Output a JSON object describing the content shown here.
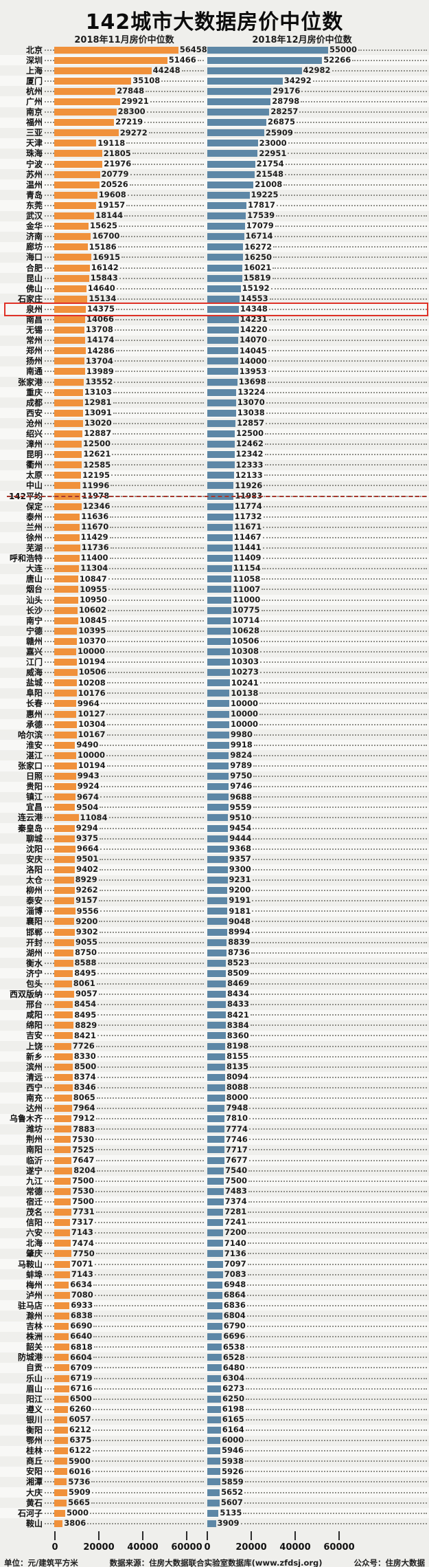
{
  "title": "142城市大数据房价中位数",
  "columns": {
    "left": "2018年11月房价中位数",
    "right": "2018年12月房价中位数"
  },
  "colors": {
    "nov_bar": "#f0913b",
    "dec_bar": "#5d87a6",
    "average_line": "#a6372c",
    "highlight_box": "#df3126"
  },
  "axis": {
    "tick_labels": [
      "0",
      "20000",
      "40000",
      "60000"
    ]
  },
  "footer": {
    "unit": "单位：元/建筑平方米",
    "source": "数据来源：住房大数据联合实验室数据库(www.zfdsj.org)",
    "account": "公众号：住房大数据"
  },
  "chart_data": {
    "type": "bar",
    "orientation": "horizontal",
    "title": "142城市大数据房价中位数",
    "series_names": [
      "2018年11月房价中位数",
      "2018年12月房价中位数"
    ],
    "xlim": [
      0,
      60000
    ],
    "x_ticks": [
      0,
      20000,
      40000,
      60000
    ],
    "unit": "元/建筑平方米",
    "highlighted_city": "泉州",
    "average_label": "142平均",
    "rows": [
      {
        "c": "北京",
        "n": 56458,
        "d": 55000
      },
      {
        "c": "深圳",
        "n": 51466,
        "d": 52266
      },
      {
        "c": "上海",
        "n": 44248,
        "d": 42982
      },
      {
        "c": "厦门",
        "n": 35108,
        "d": 34292
      },
      {
        "c": "杭州",
        "n": 27848,
        "d": 29176
      },
      {
        "c": "广州",
        "n": 29921,
        "d": 28798
      },
      {
        "c": "南京",
        "n": 28300,
        "d": 28257
      },
      {
        "c": "福州",
        "n": 27219,
        "d": 26875
      },
      {
        "c": "三亚",
        "n": 29272,
        "d": 25909
      },
      {
        "c": "天津",
        "n": 19118,
        "d": 23000
      },
      {
        "c": "珠海",
        "n": 21805,
        "d": 22951
      },
      {
        "c": "宁波",
        "n": 21976,
        "d": 21754
      },
      {
        "c": "苏州",
        "n": 20779,
        "d": 21548
      },
      {
        "c": "温州",
        "n": 20526,
        "d": 21008
      },
      {
        "c": "青岛",
        "n": 19608,
        "d": 19225
      },
      {
        "c": "东莞",
        "n": 19157,
        "d": 17817
      },
      {
        "c": "武汉",
        "n": 18144,
        "d": 17539
      },
      {
        "c": "金华",
        "n": 15625,
        "d": 17079
      },
      {
        "c": "济南",
        "n": 16700,
        "d": 16714
      },
      {
        "c": "廊坊",
        "n": 15186,
        "d": 16272
      },
      {
        "c": "海口",
        "n": 16915,
        "d": 16250
      },
      {
        "c": "合肥",
        "n": 16142,
        "d": 16021
      },
      {
        "c": "昆山",
        "n": 15843,
        "d": 15819
      },
      {
        "c": "佛山",
        "n": 14640,
        "d": 15192
      },
      {
        "c": "石家庄",
        "n": 15134,
        "d": 14553
      },
      {
        "c": "泉州",
        "n": 14375,
        "d": 14348,
        "hl": true
      },
      {
        "c": "南昌",
        "n": 14066,
        "d": 14231
      },
      {
        "c": "无锡",
        "n": 13708,
        "d": 14220
      },
      {
        "c": "常州",
        "n": 14174,
        "d": 14070
      },
      {
        "c": "郑州",
        "n": 14286,
        "d": 14045
      },
      {
        "c": "扬州",
        "n": 13704,
        "d": 14000
      },
      {
        "c": "南通",
        "n": 13989,
        "d": 13953
      },
      {
        "c": "张家港",
        "n": 13552,
        "d": 13698
      },
      {
        "c": "重庆",
        "n": 13103,
        "d": 13224
      },
      {
        "c": "成都",
        "n": 12981,
        "d": 13070
      },
      {
        "c": "西安",
        "n": 13091,
        "d": 13038
      },
      {
        "c": "沧州",
        "n": 13020,
        "d": 12857
      },
      {
        "c": "绍兴",
        "n": 12887,
        "d": 12500
      },
      {
        "c": "漳州",
        "n": 12500,
        "d": 12462
      },
      {
        "c": "昆明",
        "n": 12621,
        "d": 12342
      },
      {
        "c": "衢州",
        "n": 12585,
        "d": 12333
      },
      {
        "c": "太原",
        "n": 12195,
        "d": 12133
      },
      {
        "c": "中山",
        "n": 11996,
        "d": 11926
      },
      {
        "c": "142平均",
        "n": 11978,
        "d": 11983,
        "avg": true
      },
      {
        "c": "保定",
        "n": 12346,
        "d": 11774
      },
      {
        "c": "泰州",
        "n": 11636,
        "d": 11732
      },
      {
        "c": "兰州",
        "n": 11670,
        "d": 11671
      },
      {
        "c": "徐州",
        "n": 11429,
        "d": 11467
      },
      {
        "c": "芜湖",
        "n": 11736,
        "d": 11441
      },
      {
        "c": "呼和浩特",
        "n": 11400,
        "d": 11409
      },
      {
        "c": "大连",
        "n": 11304,
        "d": 11154
      },
      {
        "c": "唐山",
        "n": 10847,
        "d": 11058
      },
      {
        "c": "烟台",
        "n": 10955,
        "d": 11007
      },
      {
        "c": "汕头",
        "n": 10950,
        "d": 11000
      },
      {
        "c": "长沙",
        "n": 10602,
        "d": 10775
      },
      {
        "c": "南宁",
        "n": 10845,
        "d": 10714
      },
      {
        "c": "宁德",
        "n": 10395,
        "d": 10628
      },
      {
        "c": "赣州",
        "n": 10370,
        "d": 10506
      },
      {
        "c": "嘉兴",
        "n": 10000,
        "d": 10308
      },
      {
        "c": "江门",
        "n": 10194,
        "d": 10303
      },
      {
        "c": "威海",
        "n": 10506,
        "d": 10273
      },
      {
        "c": "盐城",
        "n": 10208,
        "d": 10241
      },
      {
        "c": "阜阳",
        "n": 10176,
        "d": 10138
      },
      {
        "c": "长春",
        "n": 9964,
        "d": 10000
      },
      {
        "c": "惠州",
        "n": 10127,
        "d": 10000
      },
      {
        "c": "承德",
        "n": 10304,
        "d": 10000
      },
      {
        "c": "哈尔滨",
        "n": 10167,
        "d": 9980
      },
      {
        "c": "淮安",
        "n": 9490,
        "d": 9918
      },
      {
        "c": "湛江",
        "n": 10000,
        "d": 9824
      },
      {
        "c": "张家口",
        "n": 10194,
        "d": 9789
      },
      {
        "c": "日照",
        "n": 9943,
        "d": 9750
      },
      {
        "c": "贵阳",
        "n": 9924,
        "d": 9746
      },
      {
        "c": "镇江",
        "n": 9674,
        "d": 9688
      },
      {
        "c": "宜昌",
        "n": 9504,
        "d": 9559
      },
      {
        "c": "连云港",
        "n": 11084,
        "d": 9510
      },
      {
        "c": "秦皇岛",
        "n": 9294,
        "d": 9454
      },
      {
        "c": "聊城",
        "n": 9375,
        "d": 9444
      },
      {
        "c": "沈阳",
        "n": 9664,
        "d": 9368
      },
      {
        "c": "安庆",
        "n": 9501,
        "d": 9357
      },
      {
        "c": "洛阳",
        "n": 9402,
        "d": 9300
      },
      {
        "c": "太仓",
        "n": 8929,
        "d": 9231
      },
      {
        "c": "柳州",
        "n": 9262,
        "d": 9200
      },
      {
        "c": "泰安",
        "n": 9157,
        "d": 9191
      },
      {
        "c": "淄博",
        "n": 9556,
        "d": 9181
      },
      {
        "c": "襄阳",
        "n": 9200,
        "d": 9048
      },
      {
        "c": "邯郸",
        "n": 9302,
        "d": 8994
      },
      {
        "c": "开封",
        "n": 9055,
        "d": 8839
      },
      {
        "c": "湖州",
        "n": 8750,
        "d": 8736
      },
      {
        "c": "衡水",
        "n": 8588,
        "d": 8523
      },
      {
        "c": "济宁",
        "n": 8495,
        "d": 8509
      },
      {
        "c": "包头",
        "n": 8061,
        "d": 8469
      },
      {
        "c": "西双版纳",
        "n": 9057,
        "d": 8434
      },
      {
        "c": "邢台",
        "n": 8454,
        "d": 8433
      },
      {
        "c": "咸阳",
        "n": 8495,
        "d": 8421
      },
      {
        "c": "绵阳",
        "n": 8829,
        "d": 8384
      },
      {
        "c": "吉安",
        "n": 8421,
        "d": 8360
      },
      {
        "c": "上饶",
        "n": 7726,
        "d": 8198
      },
      {
        "c": "新乡",
        "n": 8330,
        "d": 8155
      },
      {
        "c": "滨州",
        "n": 8500,
        "d": 8135
      },
      {
        "c": "清远",
        "n": 8374,
        "d": 8094
      },
      {
        "c": "西宁",
        "n": 8346,
        "d": 8088
      },
      {
        "c": "南充",
        "n": 8065,
        "d": 8000
      },
      {
        "c": "达州",
        "n": 7964,
        "d": 7948
      },
      {
        "c": "乌鲁木齐",
        "n": 7912,
        "d": 7810
      },
      {
        "c": "潍坊",
        "n": 7883,
        "d": 7774
      },
      {
        "c": "荆州",
        "n": 7530,
        "d": 7746
      },
      {
        "c": "南阳",
        "n": 7525,
        "d": 7717
      },
      {
        "c": "临沂",
        "n": 7647,
        "d": 7677
      },
      {
        "c": "遂宁",
        "n": 8204,
        "d": 7540
      },
      {
        "c": "九江",
        "n": 7500,
        "d": 7500
      },
      {
        "c": "常德",
        "n": 7530,
        "d": 7483
      },
      {
        "c": "宿迁",
        "n": 7500,
        "d": 7374
      },
      {
        "c": "茂名",
        "n": 7731,
        "d": 7281
      },
      {
        "c": "信阳",
        "n": 7317,
        "d": 7241
      },
      {
        "c": "六安",
        "n": 7143,
        "d": 7200
      },
      {
        "c": "北海",
        "n": 7474,
        "d": 7140
      },
      {
        "c": "肇庆",
        "n": 7750,
        "d": 7136
      },
      {
        "c": "马鞍山",
        "n": 7071,
        "d": 7097
      },
      {
        "c": "蚌埠",
        "n": 7143,
        "d": 7083
      },
      {
        "c": "梅州",
        "n": 6634,
        "d": 6948
      },
      {
        "c": "泸州",
        "n": 7080,
        "d": 6864
      },
      {
        "c": "驻马店",
        "n": 6933,
        "d": 6836
      },
      {
        "c": "滁州",
        "n": 6838,
        "d": 6804
      },
      {
        "c": "吉林",
        "n": 6690,
        "d": 6790
      },
      {
        "c": "株洲",
        "n": 6640,
        "d": 6696
      },
      {
        "c": "韶关",
        "n": 6818,
        "d": 6538
      },
      {
        "c": "防城港",
        "n": 6604,
        "d": 6528
      },
      {
        "c": "自贡",
        "n": 6709,
        "d": 6480
      },
      {
        "c": "乐山",
        "n": 6719,
        "d": 6304
      },
      {
        "c": "眉山",
        "n": 6716,
        "d": 6273
      },
      {
        "c": "阳江",
        "n": 6500,
        "d": 6250
      },
      {
        "c": "遵义",
        "n": 6260,
        "d": 6198
      },
      {
        "c": "银川",
        "n": 6057,
        "d": 6165
      },
      {
        "c": "衡阳",
        "n": 6212,
        "d": 6164
      },
      {
        "c": "鄂州",
        "n": 6375,
        "d": 6000
      },
      {
        "c": "桂林",
        "n": 6122,
        "d": 5946
      },
      {
        "c": "商丘",
        "n": 5900,
        "d": 5938
      },
      {
        "c": "安阳",
        "n": 6016,
        "d": 5926
      },
      {
        "c": "湘潭",
        "n": 5736,
        "d": 5859
      },
      {
        "c": "大庆",
        "n": 5909,
        "d": 5652
      },
      {
        "c": "黄石",
        "n": 5665,
        "d": 5607
      },
      {
        "c": "石河子",
        "n": 5000,
        "d": 5135
      },
      {
        "c": "鞍山",
        "n": 3806,
        "d": 3909
      }
    ]
  }
}
